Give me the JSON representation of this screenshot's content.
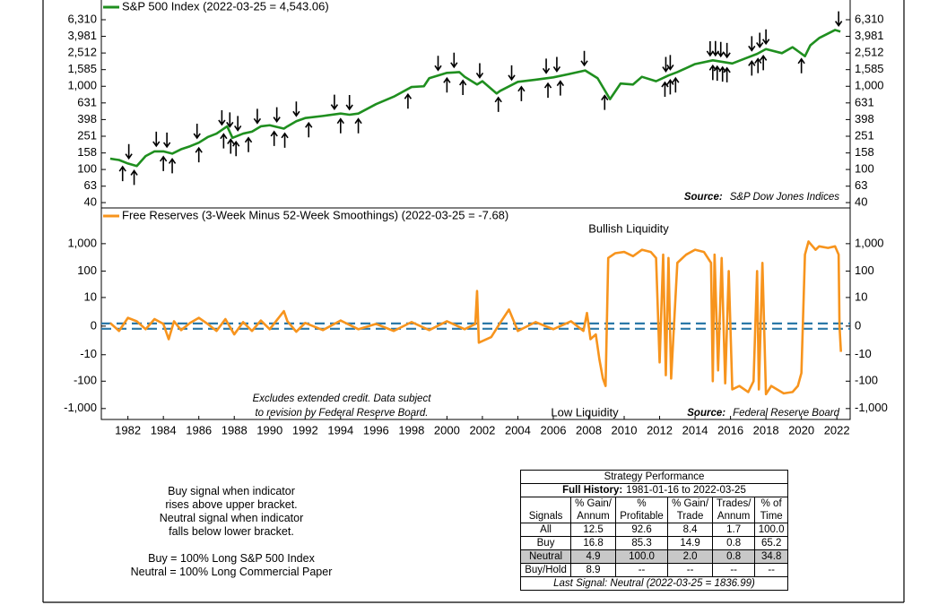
{
  "chart_data": [
    {
      "type": "line",
      "yscale": "log",
      "xlim": [
        1980.5,
        2022.75
      ],
      "ylim": [
        34.5,
        11160
      ],
      "yticks": [
        {
          "value": 6310,
          "label": "6,310"
        },
        {
          "value": 3981,
          "label": "3,981"
        },
        {
          "value": 2512,
          "label": "2,512"
        },
        {
          "value": 1585,
          "label": "1,585"
        },
        {
          "value": 1000,
          "label": "1,000"
        },
        631,
        398,
        251,
        158,
        100,
        63,
        40
      ],
      "x": [
        1981.0,
        1981.5,
        1982.0,
        1982.5,
        1983.0,
        1983.5,
        1984.0,
        1984.5,
        1985.0,
        1985.5,
        1986.0,
        1986.5,
        1987.0,
        1987.6,
        1987.9,
        1988.5,
        1989.0,
        1989.5,
        1990.0,
        1990.8,
        1991.0,
        1991.5,
        1992.0,
        1993.0,
        1994.0,
        1994.5,
        1995.0,
        1996.0,
        1997.0,
        1998.0,
        1998.7,
        1999.0,
        2000.0,
        2000.7,
        2001.0,
        2001.7,
        2002.0,
        2002.8,
        2003.0,
        2004.0,
        2005.0,
        2006.0,
        2007.0,
        2007.8,
        2008.5,
        2009.2,
        2009.8,
        2010.5,
        2011.0,
        2011.8,
        2012.5,
        2013.0,
        2014.0,
        2015.0,
        2016.1,
        2016.8,
        2017.5,
        2018.0,
        2018.9,
        2019.5,
        2020.2,
        2020.5,
        2021.0,
        2021.9,
        2022.2
      ],
      "series": [
        {
          "name": "S&P 500 Index (2022-03-25 = 4,543.06)",
          "color": "#1f8f1f",
          "values": [
            135,
            130,
            118,
            110,
            145,
            165,
            165,
            155,
            175,
            190,
            210,
            245,
            270,
            330,
            240,
            270,
            285,
            330,
            340,
            310,
            330,
            380,
            415,
            440,
            470,
            455,
            470,
            610,
            750,
            980,
            1000,
            1250,
            1450,
            1480,
            1300,
            1050,
            1150,
            820,
            880,
            1130,
            1200,
            1280,
            1420,
            1550,
            1250,
            700,
            1080,
            1050,
            1300,
            1150,
            1350,
            1480,
            1850,
            2050,
            1880,
            2150,
            2450,
            2800,
            2500,
            2950,
            2300,
            3100,
            3800,
            4750,
            4543.06
          ]
        }
      ],
      "buy_signals": [
        1981.7,
        1982.35,
        1984.0,
        1984.5,
        1986.0,
        1987.4,
        1987.8,
        1988.1,
        1988.8,
        1990.25,
        1990.85,
        1992.2,
        1994.0,
        1995.0,
        1997.8,
        2000.0,
        2000.9,
        2002.9,
        2004.2,
        2005.7,
        2006.4,
        2008.9,
        2012.3,
        2012.6,
        2012.9,
        2015.0,
        2015.25,
        2015.55,
        2015.8,
        2017.2,
        2017.55,
        2017.85,
        2020.0
      ],
      "neutral_signals": [
        1982.05,
        1983.6,
        1984.2,
        1985.9,
        1987.3,
        1987.75,
        1988.2,
        1989.3,
        1990.4,
        1991.5,
        1993.65,
        1994.5,
        1999.5,
        2000.4,
        2001.85,
        2003.65,
        2005.6,
        2006.2,
        2007.75,
        2012.35,
        2012.6,
        2014.85,
        2015.15,
        2015.45,
        2015.8,
        2017.2,
        2017.65,
        2018.0,
        2022.1
      ],
      "signal_color": "#000000",
      "source_label": "Source:",
      "source": "S&P Dow Jones Indices"
    },
    {
      "type": "line",
      "yscale": "symlog",
      "xlim": [
        1980.5,
        2022.75
      ],
      "ylim": [
        -2500,
        20000
      ],
      "xticks": [
        1982,
        1984,
        1986,
        1988,
        1990,
        1992,
        1994,
        1996,
        1998,
        2000,
        2002,
        2004,
        2006,
        2008,
        2010,
        2012,
        2014,
        2016,
        2018,
        2020,
        2022
      ],
      "yticks": [
        {
          "value": 1000,
          "label": "1,000"
        },
        100,
        10,
        0,
        -10,
        -100,
        {
          "value": -1000,
          "label": "-1,000"
        }
      ],
      "x": [
        1981.0,
        1981.5,
        1982.0,
        1982.5,
        1983.0,
        1983.5,
        1984.0,
        1984.3,
        1984.6,
        1985.0,
        1985.5,
        1986.0,
        1986.5,
        1987.0,
        1987.5,
        1988.0,
        1988.5,
        1989.0,
        1989.5,
        1990.0,
        1990.8,
        1991.0,
        1991.5,
        1992.0,
        1993.0,
        1994.0,
        1995.0,
        1996.0,
        1997.0,
        1998.0,
        1999.0,
        2000.0,
        2001.0,
        2001.6,
        2001.7,
        2001.8,
        2002.5,
        2003.0,
        2003.5,
        2004.0,
        2005.0,
        2006.0,
        2007.0,
        2007.7,
        2007.9,
        2008.1,
        2008.4,
        2008.6,
        2008.8,
        2008.95,
        2009.1,
        2009.5,
        2010.0,
        2010.5,
        2011.0,
        2011.5,
        2011.8,
        2012.0,
        2012.2,
        2012.35,
        2012.5,
        2012.65,
        2013.0,
        2013.5,
        2014.0,
        2014.5,
        2014.9,
        2015.0,
        2015.1,
        2015.3,
        2015.5,
        2015.7,
        2015.9,
        2016.1,
        2016.5,
        2017.0,
        2017.3,
        2017.5,
        2017.6,
        2017.8,
        2018.0,
        2018.3,
        2019.0,
        2019.5,
        2019.8,
        2020.0,
        2020.2,
        2020.4,
        2020.8,
        2021.0,
        2021.5,
        2021.9,
        2022.1,
        2022.15,
        2022.23
      ],
      "series": [
        {
          "name": "Free Reserves (3-Week Minus 52-Week Smoothings) (2022-03-25 = -7.68)",
          "color": "#f7941d",
          "values": [
            0.3,
            -0.5,
            1,
            0.5,
            -0.3,
            0.8,
            0.2,
            -2,
            0.5,
            -0.4,
            0.3,
            1,
            0.2,
            -0.5,
            0.8,
            -1,
            0.4,
            -0.5,
            0.6,
            -0.3,
            2.5,
            0.5,
            -0.6,
            0.3,
            -0.4,
            0.6,
            -0.3,
            0.2,
            -0.5,
            0.4,
            -0.4,
            0.5,
            -0.3,
            0.2,
            18,
            -3,
            -1.5,
            0.3,
            3,
            -0.5,
            0.4,
            -0.3,
            0.5,
            -0.5,
            2,
            -2,
            -1,
            -15,
            -80,
            -150,
            300,
            450,
            500,
            350,
            600,
            500,
            300,
            -20,
            400,
            -60,
            300,
            -80,
            200,
            400,
            600,
            500,
            200,
            -100,
            400,
            -40,
            300,
            -120,
            100,
            -200,
            -150,
            -250,
            -100,
            100,
            -200,
            200,
            -300,
            -150,
            -280,
            -250,
            -150,
            -50,
            400,
            1200,
            600,
            800,
            700,
            800,
            400,
            0,
            -7.68
          ]
        }
      ],
      "brackets": [
        0.25,
        -0.25
      ],
      "bracket_color": "#2a78a8",
      "annotations": {
        "upper": "Bullish Liquidity",
        "lower": "Low Liquidity",
        "note": [
          "Excludes extended credit. Data subject",
          "to revision by Federal Reserve Board."
        ]
      },
      "source_label": "Source:",
      "source": "Federal Reserve Board"
    }
  ],
  "signal_rules": [
    "Buy signal when indicator",
    "rises above upper bracket.",
    "Neutral signal when indicator",
    "falls below lower bracket."
  ],
  "allocations": [
    "Buy = 100% Long S&P 500 Index",
    "Neutral = 100% Long Commercial Paper"
  ],
  "performance_table": {
    "title": "Strategy Performance",
    "subtitle_label": "Full History:",
    "subtitle": "1981-01-16 to 2022-03-25",
    "columns": [
      [
        "Signals"
      ],
      [
        "% Gain/",
        "Annum"
      ],
      [
        "%",
        "Profitable"
      ],
      [
        "% Gain/",
        "Trade"
      ],
      [
        "Trades/",
        "Annum"
      ],
      [
        "% of",
        "Time"
      ]
    ],
    "rows": [
      [
        "All",
        "12.5",
        "92.6",
        "8.4",
        "1.7",
        "100.0"
      ],
      [
        "Buy",
        "16.8",
        "85.3",
        "14.9",
        "0.8",
        "65.2"
      ],
      [
        "Neutral",
        "4.9",
        "100.0",
        "2.0",
        "0.8",
        "34.8"
      ],
      [
        "Buy/Hold",
        "8.9",
        "--",
        "--",
        "--",
        "--"
      ]
    ],
    "highlight_row": 2,
    "footer": "Last Signal: Neutral (2022-03-25 = 1836.99)"
  }
}
